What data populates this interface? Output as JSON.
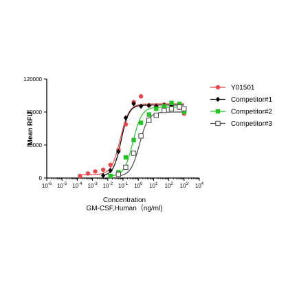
{
  "chart_data": {
    "type": "scatter",
    "xlabel": "Concentration",
    "xlabel2": "GM-CSF,Human（ng/ml)",
    "ylabel": "Mean RFU",
    "x_scale": "log",
    "xlim": [
      1e-06,
      10000
    ],
    "ylim": [
      0,
      120000
    ],
    "x_ticks": [
      {
        "value": 1e-06,
        "base": "10",
        "exp": "-6"
      },
      {
        "value": 1e-05,
        "base": "10",
        "exp": "-5"
      },
      {
        "value": 0.0001,
        "base": "10",
        "exp": "-4"
      },
      {
        "value": 0.001,
        "base": "10",
        "exp": "-3"
      },
      {
        "value": 0.01,
        "base": "10",
        "exp": "-2"
      },
      {
        "value": 0.1,
        "base": "10",
        "exp": "-1"
      },
      {
        "value": 1,
        "base": "10",
        "exp": "0"
      },
      {
        "value": 10,
        "base": "10",
        "exp": "1"
      },
      {
        "value": 100,
        "base": "10",
        "exp": "2"
      },
      {
        "value": 1000,
        "base": "10",
        "exp": "3"
      },
      {
        "value": 10000,
        "base": "10",
        "exp": "4"
      }
    ],
    "y_ticks": [
      {
        "value": 0,
        "label": "0"
      },
      {
        "value": 40000,
        "label": "40000"
      },
      {
        "value": 80000,
        "label": "80000"
      },
      {
        "value": 120000,
        "label": "120000"
      }
    ],
    "legend_position": "right",
    "series": [
      {
        "name": "Y01501",
        "color": "#e8484b",
        "marker": "circle",
        "x": [
          0.00015,
          0.0005,
          0.0015,
          0.005,
          0.015,
          0.05,
          0.15,
          0.5,
          1.5,
          5,
          15,
          50,
          150,
          500,
          1000
        ],
        "y": [
          2500,
          5500,
          8000,
          10000,
          16000,
          34000,
          65000,
          92000,
          99000,
          88000,
          87000,
          89000,
          86000,
          85000,
          78000
        ],
        "curve": {
          "bottom": 4000,
          "top": 90000,
          "ec50": 0.065,
          "hill": 1.5
        }
      },
      {
        "name": "Competitor#1",
        "color": "#000000",
        "marker": "diamond",
        "x": [
          0.005,
          0.015,
          0.05,
          0.15,
          0.5,
          1.5,
          5,
          15,
          50,
          150,
          500,
          1000
        ],
        "y": [
          3000,
          9000,
          32000,
          73000,
          90000,
          87000,
          88000,
          87000,
          88000,
          88000,
          88000,
          81000
        ],
        "curve": {
          "bottom": 2500,
          "top": 88500,
          "ec50": 0.075,
          "hill": 1.7
        }
      },
      {
        "name": "Competitor#2",
        "color": "#22c322",
        "marker": "square",
        "x": [
          0.015,
          0.05,
          0.15,
          0.5,
          1.5,
          5,
          15,
          50,
          150,
          500,
          1000
        ],
        "y": [
          2500,
          7000,
          25000,
          46000,
          67000,
          77000,
          84000,
          87000,
          91000,
          90000,
          80000
        ],
        "curve": {
          "bottom": 2000,
          "top": 86000,
          "ec50": 0.45,
          "hill": 1.5
        }
      },
      {
        "name": "Competitor#3",
        "color": "#444444",
        "marker": "open-square",
        "x": [
          0.05,
          0.15,
          0.5,
          1.5,
          5,
          15,
          50,
          150,
          500,
          1000
        ],
        "y": [
          4500,
          13000,
          30000,
          51000,
          70000,
          76000,
          82000,
          84000,
          86000,
          84000
        ],
        "curve": {
          "bottom": 2000,
          "top": 80000,
          "ec50": 1.2,
          "hill": 1.5
        }
      }
    ]
  }
}
